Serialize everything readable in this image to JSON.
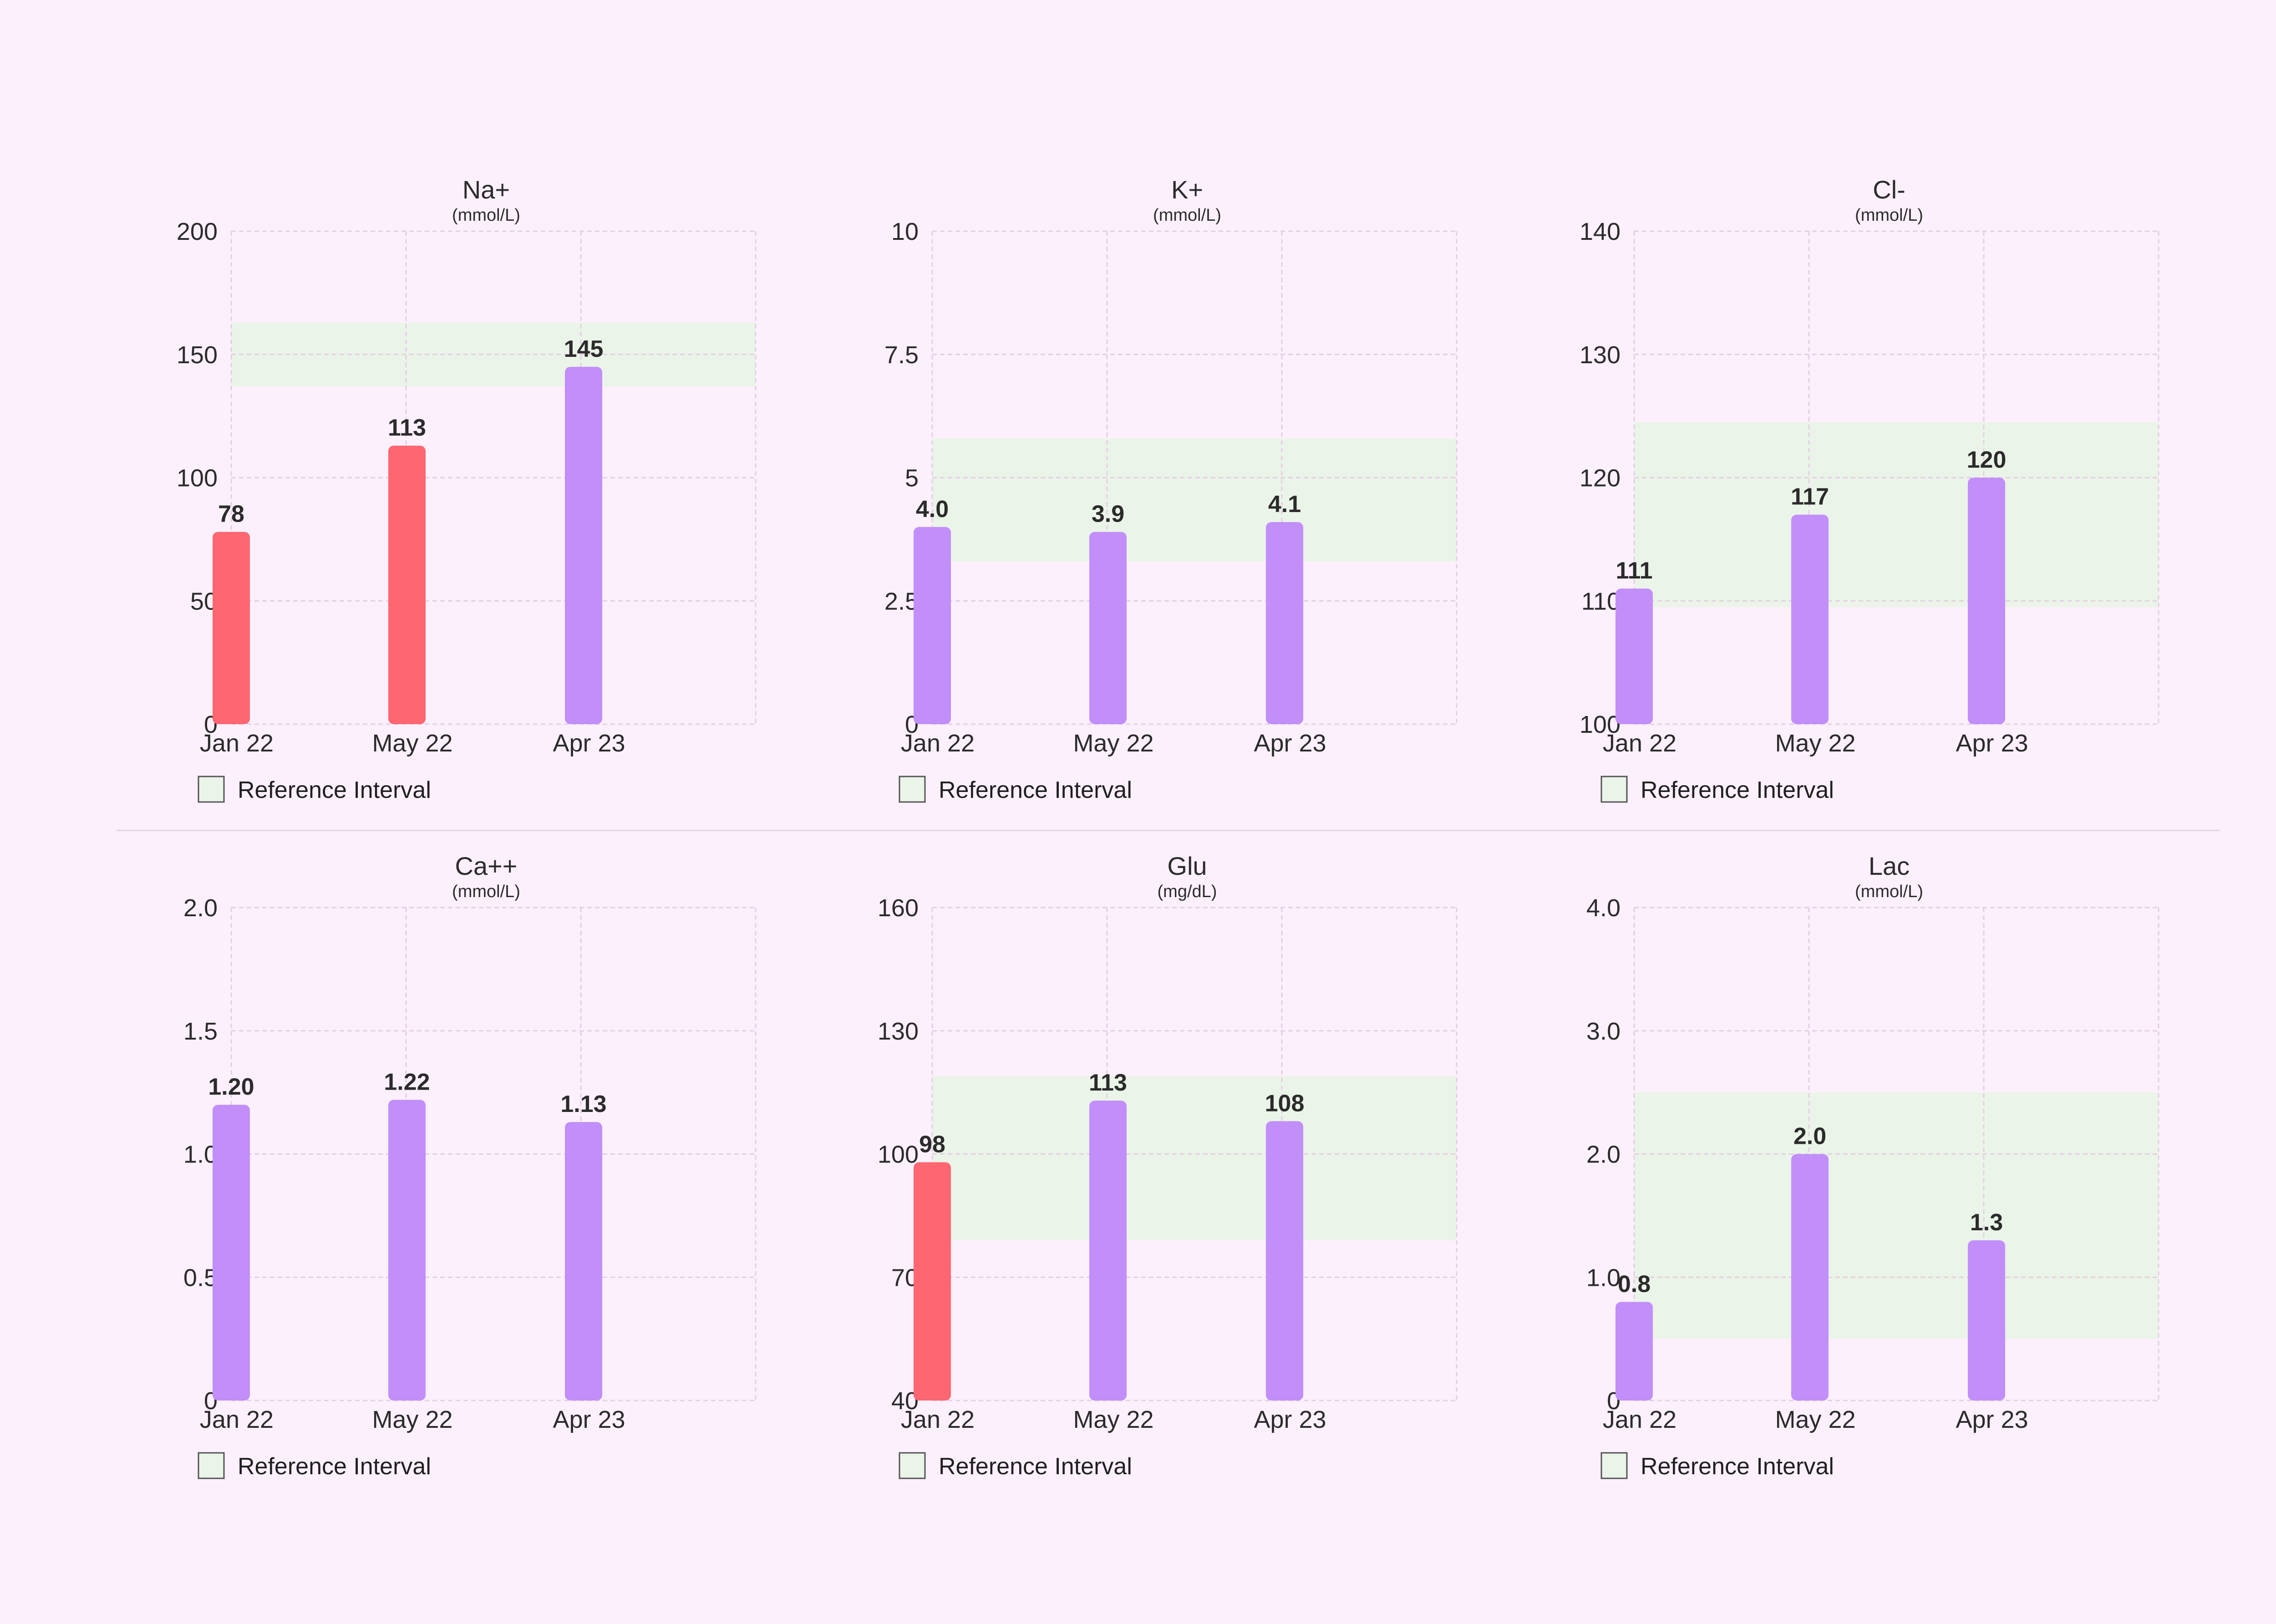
{
  "colors": {
    "background": "#fcf0fc",
    "normal_bar": "#c28efa",
    "abnormal_bar": "#fe6671",
    "reference_band": "#ebf4e8",
    "grid": "#e3cfe3",
    "divider": "#e2d6e2",
    "text": "#2b2b2b"
  },
  "legend": {
    "label": "Reference Interval"
  },
  "chart_data": [
    {
      "type": "bar",
      "title": "Na+",
      "unit": "(mmol/L)",
      "categories": [
        "Jan 22",
        "May 22",
        "Apr 23"
      ],
      "values": [
        78,
        113,
        145
      ],
      "value_labels": [
        "78",
        "113",
        "145"
      ],
      "status": [
        "abnormal",
        "abnormal",
        "normal"
      ],
      "ylim": [
        0,
        200
      ],
      "yticks": [
        0,
        50,
        100,
        150,
        200
      ],
      "ytick_labels": [
        "0",
        "50",
        "100",
        "150",
        "200"
      ],
      "reference_interval": [
        137,
        163
      ],
      "grid": true,
      "legend": "bottom-left"
    },
    {
      "type": "bar",
      "title": "K+",
      "unit": "(mmol/L)",
      "categories": [
        "Jan 22",
        "May 22",
        "Apr 23"
      ],
      "values": [
        4.0,
        3.9,
        4.1
      ],
      "value_labels": [
        "4.0",
        "3.9",
        "4.1"
      ],
      "status": [
        "normal",
        "normal",
        "normal"
      ],
      "ylim": [
        0,
        10
      ],
      "yticks": [
        0,
        2.5,
        5,
        7.5,
        10
      ],
      "ytick_labels": [
        "0",
        "2.5",
        "5",
        "7.5",
        "10"
      ],
      "reference_interval": [
        3.3,
        5.8
      ],
      "grid": true,
      "legend": "bottom-left"
    },
    {
      "type": "bar",
      "title": "Cl-",
      "unit": "(mmol/L)",
      "categories": [
        "Jan 22",
        "May 22",
        "Apr 23"
      ],
      "values": [
        111,
        117,
        120
      ],
      "value_labels": [
        "111",
        "117",
        "120"
      ],
      "status": [
        "normal",
        "normal",
        "normal"
      ],
      "ylim": [
        100,
        140
      ],
      "yticks": [
        100,
        110,
        120,
        130,
        140
      ],
      "ytick_labels": [
        "100",
        "110",
        "120",
        "130",
        "140"
      ],
      "reference_interval": [
        109.5,
        124.5
      ],
      "grid": true,
      "legend": "bottom-left"
    },
    {
      "type": "bar",
      "title": "Ca++",
      "unit": "(mmol/L)",
      "categories": [
        "Jan 22",
        "May 22",
        "Apr 23"
      ],
      "values": [
        1.2,
        1.22,
        1.13
      ],
      "value_labels": [
        "1.20",
        "1.22",
        "1.13"
      ],
      "status": [
        "normal",
        "normal",
        "normal"
      ],
      "ylim": [
        0,
        2.0
      ],
      "yticks": [
        0,
        0.5,
        1.0,
        1.5,
        2.0
      ],
      "ytick_labels": [
        "0",
        "0.5",
        "1.0",
        "1.5",
        "2.0"
      ],
      "reference_interval": null,
      "grid": true,
      "legend": "bottom-left"
    },
    {
      "type": "bar",
      "title": "Glu",
      "unit": "(mg/dL)",
      "categories": [
        "Jan 22",
        "May 22",
        "Apr 23"
      ],
      "values": [
        98,
        113,
        108
      ],
      "value_labels": [
        "98",
        "113",
        "108"
      ],
      "status": [
        "abnormal",
        "normal",
        "normal"
      ],
      "ylim": [
        40,
        160
      ],
      "yticks": [
        40,
        70,
        100,
        130,
        160
      ],
      "ytick_labels": [
        "40",
        "70",
        "100",
        "130",
        "160"
      ],
      "reference_interval": [
        79,
        119
      ],
      "grid": true,
      "legend": "bottom-left"
    },
    {
      "type": "bar",
      "title": "Lac",
      "unit": "(mmol/L)",
      "categories": [
        "Jan 22",
        "May 22",
        "Apr 23"
      ],
      "values": [
        0.8,
        2.0,
        1.3
      ],
      "value_labels": [
        "0.8",
        "2.0",
        "1.3"
      ],
      "status": [
        "normal",
        "normal",
        "normal"
      ],
      "ylim": [
        0,
        4.0
      ],
      "yticks": [
        0,
        1.0,
        2.0,
        3.0,
        4.0
      ],
      "ytick_labels": [
        "0",
        "1.0",
        "2.0",
        "3.0",
        "4.0"
      ],
      "reference_interval": [
        0.5,
        2.5
      ],
      "grid": true,
      "legend": "bottom-left"
    }
  ]
}
